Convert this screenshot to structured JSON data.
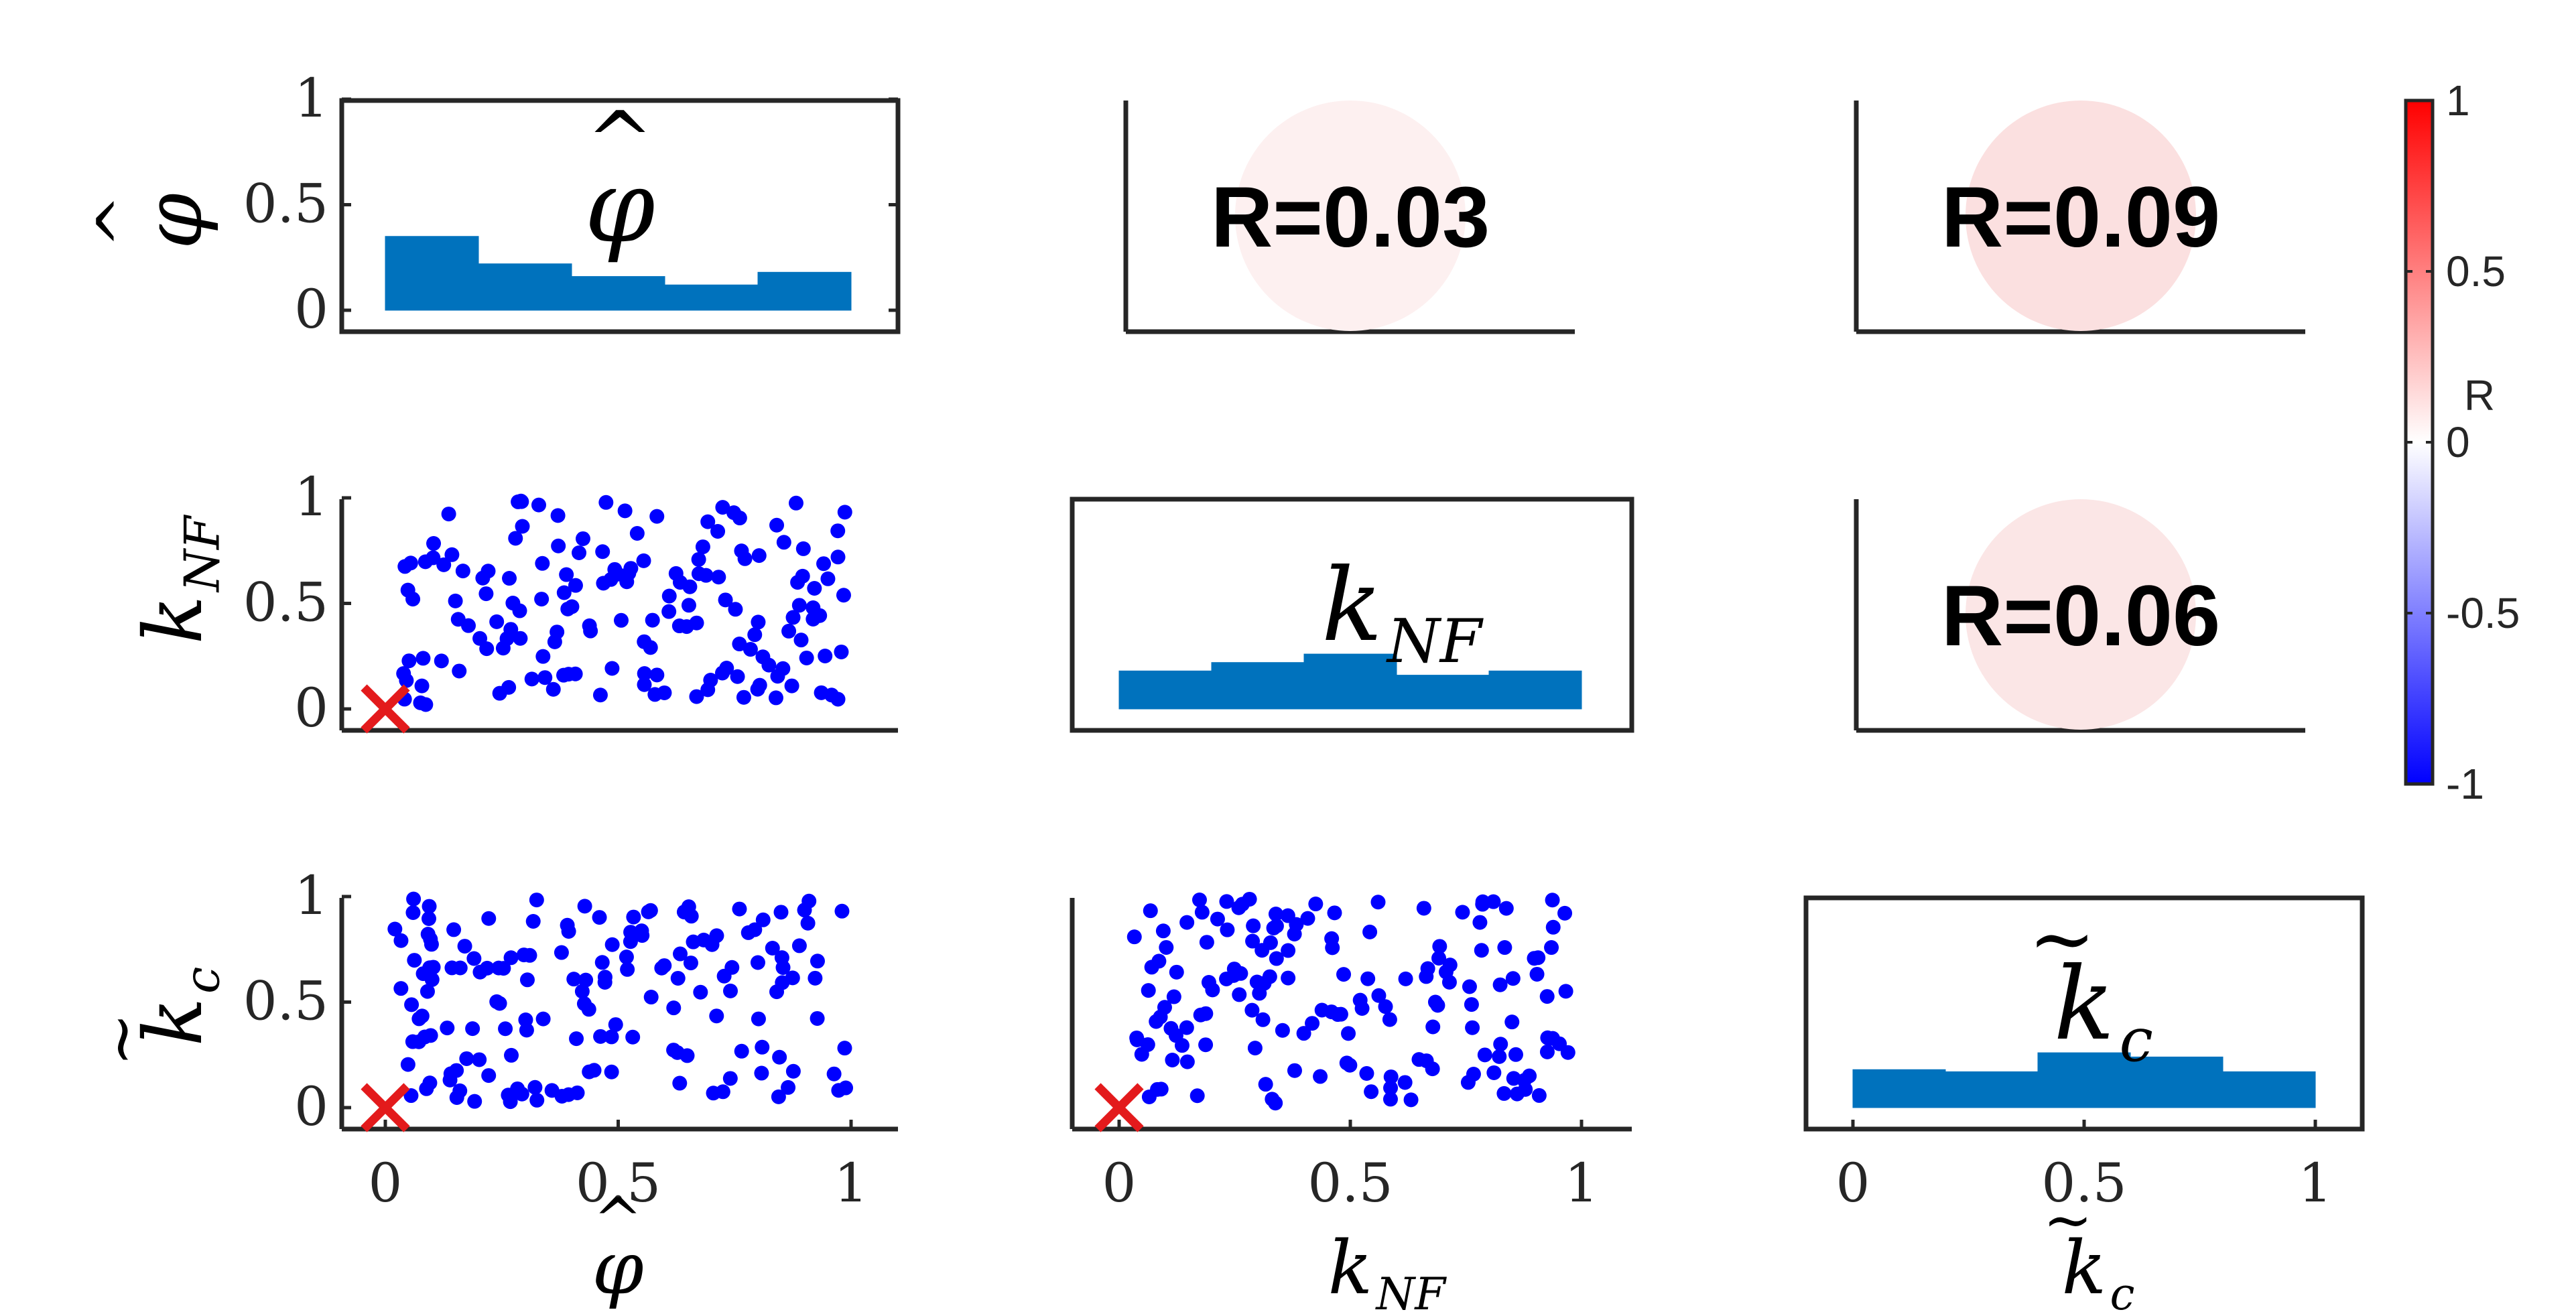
{
  "chart_data": {
    "type": "scatter-matrix",
    "variables": [
      "φ̂",
      "k_NF",
      "k̃_c"
    ],
    "variable_labels": [
      {
        "base": "φ",
        "accent": "^",
        "sub": ""
      },
      {
        "base": "k",
        "accent": "",
        "sub": "NF"
      },
      {
        "base": "k",
        "accent": "~",
        "sub": "c"
      }
    ],
    "ticks": [
      0,
      0.5,
      1
    ],
    "tick_labels": [
      "0",
      "0.5",
      "1"
    ],
    "xlim": [
      0,
      1
    ],
    "ylim": [
      0,
      1
    ],
    "marker_color": "#0000ff",
    "reference_point": {
      "x": 0,
      "y": 0,
      "marker": "x",
      "color": "#e31a1c"
    },
    "histograms": [
      {
        "variable": "φ̂",
        "bin_edges": [
          0,
          0.2,
          0.4,
          0.6,
          0.8,
          1.0
        ],
        "values": [
          0.35,
          0.22,
          0.16,
          0.12,
          0.18
        ],
        "color": "#0072bd"
      },
      {
        "variable": "k_NF",
        "bin_edges": [
          0,
          0.2,
          0.4,
          0.6,
          0.8,
          1.0
        ],
        "values": [
          0.18,
          0.22,
          0.26,
          0.16,
          0.18
        ],
        "color": "#0072bd"
      },
      {
        "variable": "k̃_c",
        "bin_edges": [
          0,
          0.2,
          0.4,
          0.6,
          0.8,
          1.0
        ],
        "values": [
          0.18,
          0.17,
          0.26,
          0.24,
          0.17
        ],
        "color": "#0072bd"
      }
    ],
    "correlations": [
      {
        "row": 0,
        "col": 1,
        "r": 0.03,
        "label": "R=0.03",
        "color": "#fdf0f0"
      },
      {
        "row": 0,
        "col": 2,
        "r": 0.09,
        "label": "R=0.09",
        "color": "#fbe0e0"
      },
      {
        "row": 1,
        "col": 2,
        "r": 0.06,
        "label": "R=0.06",
        "color": "#fbe6e6"
      }
    ],
    "scatter": [
      {
        "row": 1,
        "col": 0,
        "n": 160,
        "seed": 11
      },
      {
        "row": 2,
        "col": 0,
        "n": 160,
        "seed": 23
      },
      {
        "row": 2,
        "col": 1,
        "n": 160,
        "seed": 37
      }
    ],
    "colorbar": {
      "label": "R",
      "range": [
        -1,
        1
      ],
      "ticks": [
        1,
        0.5,
        0,
        -0.5,
        -1
      ],
      "tick_labels": [
        "1",
        "0.5",
        "0",
        "-0.5",
        "-1"
      ],
      "colormap": [
        "#0000ff",
        "#ffffff",
        "#ff0000"
      ]
    }
  }
}
